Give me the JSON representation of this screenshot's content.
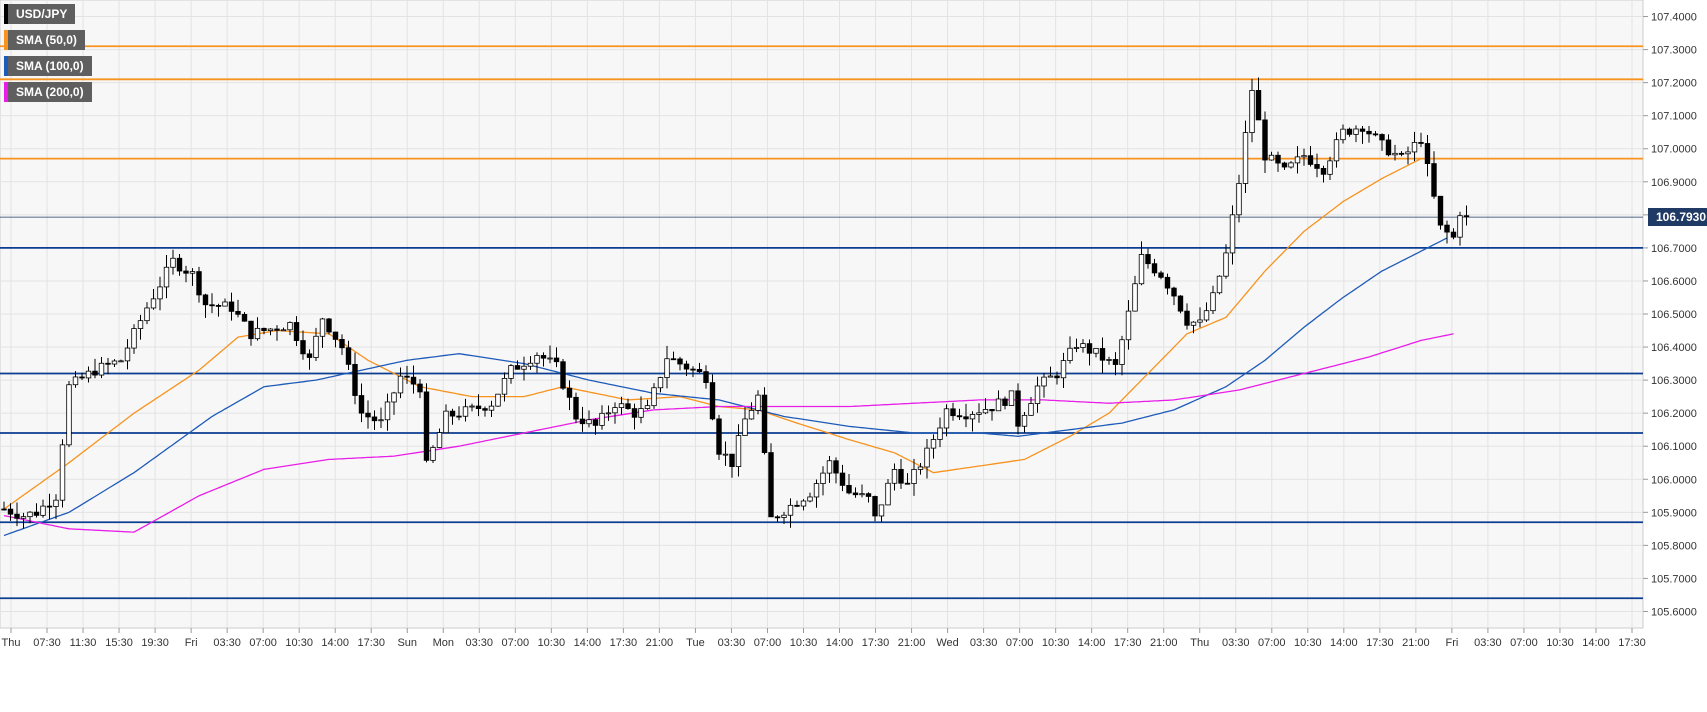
{
  "legend": [
    {
      "label": "USD/JPY",
      "color": "#000000"
    },
    {
      "label": "SMA (50,0)",
      "color": "#f7931e"
    },
    {
      "label": "SMA (100,0)",
      "color": "#1e5bb8"
    },
    {
      "label": "SMA (200,0)",
      "color": "#e81ee8"
    }
  ],
  "last_price": "106.7930",
  "chart_data": {
    "type": "candlestick",
    "title": "",
    "ylim": [
      105.55,
      107.45
    ],
    "y_ticks": [
      "105.6000",
      "105.7000",
      "105.8000",
      "105.9000",
      "106.0000",
      "106.1000",
      "106.2000",
      "106.3000",
      "106.4000",
      "106.5000",
      "106.6000",
      "106.7000",
      "106.8000",
      "106.9000",
      "107.0000",
      "107.1000",
      "107.2000",
      "107.3000",
      "107.4000"
    ],
    "x_ticks": [
      "Thu",
      "07:30",
      "11:30",
      "15:30",
      "19:30",
      "Fri",
      "03:30",
      "07:00",
      "10:30",
      "14:00",
      "17:30",
      "Sun",
      "Mon",
      "03:30",
      "07:00",
      "10:30",
      "14:00",
      "17:30",
      "21:00",
      "Tue",
      "03:30",
      "07:00",
      "10:30",
      "14:00",
      "17:30",
      "21:00",
      "Wed",
      "03:30",
      "07:00",
      "10:30",
      "14:00",
      "17:30",
      "21:00",
      "Thu",
      "03:30",
      "07:00",
      "10:30",
      "14:00",
      "17:30",
      "21:00",
      "Fri",
      "03:30",
      "07:00",
      "10:30",
      "14:00",
      "17:30"
    ],
    "horizontal_lines": [
      {
        "value": 107.31,
        "color": "#f7931e"
      },
      {
        "value": 107.21,
        "color": "#f7931e"
      },
      {
        "value": 106.97,
        "color": "#f7931e"
      },
      {
        "value": 106.7,
        "color": "#0b3d91"
      },
      {
        "value": 106.32,
        "color": "#0b3d91"
      },
      {
        "value": 106.14,
        "color": "#0b3d91"
      },
      {
        "value": 105.87,
        "color": "#0b3d91"
      },
      {
        "value": 105.64,
        "color": "#0b3d91"
      }
    ],
    "current_price": 106.793,
    "price_keypoints": [
      [
        0,
        105.91
      ],
      [
        3,
        105.89
      ],
      [
        5,
        105.9
      ],
      [
        8,
        105.95
      ],
      [
        10,
        106.28
      ],
      [
        14,
        106.33
      ],
      [
        18,
        106.36
      ],
      [
        22,
        106.52
      ],
      [
        26,
        106.66
      ],
      [
        29,
        106.62
      ],
      [
        31,
        106.53
      ],
      [
        35,
        106.52
      ],
      [
        38,
        106.44
      ],
      [
        40,
        106.45
      ],
      [
        44,
        106.47
      ],
      [
        47,
        106.36
      ],
      [
        49,
        106.49
      ],
      [
        52,
        106.4
      ],
      [
        55,
        106.2
      ],
      [
        58,
        106.17
      ],
      [
        61,
        106.31
      ],
      [
        64,
        106.28
      ],
      [
        65,
        106.04
      ],
      [
        68,
        106.19
      ],
      [
        72,
        106.21
      ],
      [
        75,
        106.23
      ],
      [
        78,
        106.33
      ],
      [
        82,
        106.38
      ],
      [
        85,
        106.34
      ],
      [
        88,
        106.19
      ],
      [
        91,
        106.16
      ],
      [
        94,
        106.23
      ],
      [
        97,
        106.2
      ],
      [
        99,
        106.21
      ],
      [
        102,
        106.37
      ],
      [
        105,
        106.34
      ],
      [
        108,
        106.31
      ],
      [
        110,
        106.09
      ],
      [
        112,
        106.05
      ],
      [
        114,
        106.18
      ],
      [
        116,
        106.25
      ],
      [
        118,
        105.88
      ],
      [
        121,
        105.92
      ],
      [
        124,
        105.96
      ],
      [
        127,
        106.05
      ],
      [
        130,
        105.96
      ],
      [
        133,
        105.94
      ],
      [
        134,
        105.88
      ],
      [
        137,
        106.03
      ],
      [
        139,
        105.98
      ],
      [
        142,
        106.08
      ],
      [
        145,
        106.21
      ],
      [
        148,
        106.2
      ],
      [
        152,
        106.22
      ],
      [
        155,
        106.25
      ],
      [
        156,
        106.17
      ],
      [
        159,
        106.28
      ],
      [
        162,
        106.32
      ],
      [
        165,
        106.41
      ],
      [
        168,
        106.38
      ],
      [
        171,
        106.34
      ],
      [
        173,
        106.5
      ],
      [
        175,
        106.67
      ],
      [
        178,
        106.62
      ],
      [
        180,
        106.56
      ],
      [
        182,
        106.48
      ],
      [
        184,
        106.47
      ],
      [
        186,
        106.55
      ],
      [
        188,
        106.68
      ],
      [
        190,
        106.9
      ],
      [
        192,
        107.18
      ],
      [
        194,
        106.98
      ],
      [
        197,
        106.93
      ],
      [
        200,
        106.98
      ],
      [
        203,
        106.94
      ],
      [
        206,
        107.05
      ],
      [
        209,
        107.07
      ],
      [
        212,
        107.01
      ],
      [
        215,
        106.97
      ],
      [
        218,
        107.03
      ],
      [
        219,
        106.94
      ],
      [
        221,
        106.76
      ],
      [
        223,
        106.73
      ],
      [
        224,
        106.81
      ],
      [
        225,
        106.79
      ]
    ],
    "series": [
      {
        "name": "SMA (50,0)",
        "color": "#f7931e",
        "values": [
          [
            0,
            105.91
          ],
          [
            10,
            106.05
          ],
          [
            20,
            106.2
          ],
          [
            30,
            106.33
          ],
          [
            36,
            106.43
          ],
          [
            42,
            106.45
          ],
          [
            50,
            106.44
          ],
          [
            56,
            106.36
          ],
          [
            64,
            106.28
          ],
          [
            72,
            106.25
          ],
          [
            80,
            106.25
          ],
          [
            86,
            106.28
          ],
          [
            96,
            106.24
          ],
          [
            104,
            106.25
          ],
          [
            110,
            106.22
          ],
          [
            116,
            106.21
          ],
          [
            122,
            106.17
          ],
          [
            130,
            106.12
          ],
          [
            137,
            106.08
          ],
          [
            143,
            106.02
          ],
          [
            150,
            106.04
          ],
          [
            157,
            106.06
          ],
          [
            164,
            106.13
          ],
          [
            170,
            106.2
          ],
          [
            176,
            106.32
          ],
          [
            182,
            106.44
          ],
          [
            188,
            106.49
          ],
          [
            194,
            106.63
          ],
          [
            200,
            106.75
          ],
          [
            206,
            106.84
          ],
          [
            212,
            106.91
          ],
          [
            218,
            106.97
          ],
          [
            222,
            106.97
          ]
        ]
      },
      {
        "name": "SMA (100,0)",
        "color": "#1e5bb8",
        "values": [
          [
            0,
            105.83
          ],
          [
            10,
            105.9
          ],
          [
            20,
            106.02
          ],
          [
            32,
            106.19
          ],
          [
            40,
            106.28
          ],
          [
            48,
            106.3
          ],
          [
            55,
            106.33
          ],
          [
            62,
            106.36
          ],
          [
            70,
            106.38
          ],
          [
            80,
            106.35
          ],
          [
            90,
            106.3
          ],
          [
            100,
            106.26
          ],
          [
            110,
            106.24
          ],
          [
            120,
            106.19
          ],
          [
            130,
            106.16
          ],
          [
            140,
            106.14
          ],
          [
            150,
            106.14
          ],
          [
            156,
            106.13
          ],
          [
            164,
            106.15
          ],
          [
            172,
            106.17
          ],
          [
            180,
            106.21
          ],
          [
            188,
            106.28
          ],
          [
            194,
            106.36
          ],
          [
            200,
            106.46
          ],
          [
            206,
            106.55
          ],
          [
            212,
            106.63
          ],
          [
            218,
            106.69
          ],
          [
            222,
            106.73
          ]
        ]
      },
      {
        "name": "SMA (200,0)",
        "color": "#e81ee8",
        "values": [
          [
            0,
            105.89
          ],
          [
            10,
            105.85
          ],
          [
            20,
            105.84
          ],
          [
            30,
            105.95
          ],
          [
            40,
            106.03
          ],
          [
            50,
            106.06
          ],
          [
            60,
            106.07
          ],
          [
            70,
            106.1
          ],
          [
            80,
            106.14
          ],
          [
            90,
            106.18
          ],
          [
            100,
            106.21
          ],
          [
            110,
            106.22
          ],
          [
            120,
            106.22
          ],
          [
            130,
            106.22
          ],
          [
            140,
            106.23
          ],
          [
            150,
            106.24
          ],
          [
            160,
            106.24
          ],
          [
            170,
            106.23
          ],
          [
            180,
            106.24
          ],
          [
            190,
            106.27
          ],
          [
            200,
            106.32
          ],
          [
            210,
            106.37
          ],
          [
            218,
            106.42
          ],
          [
            223,
            106.44
          ]
        ]
      }
    ]
  }
}
